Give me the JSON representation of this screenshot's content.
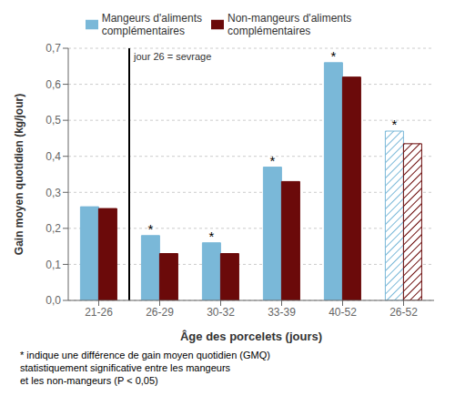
{
  "chart_data": {
    "type": "bar",
    "categories": [
      "21-26",
      "26-29",
      "30-32",
      "33-39",
      "40-52",
      "26-52"
    ],
    "series": [
      {
        "name": "Mangeurs d'aliments\ncomplémentaires",
        "color": "#7ab8d8",
        "values": [
          0.26,
          0.18,
          0.16,
          0.37,
          0.66,
          0.47
        ]
      },
      {
        "name": "Non-mangeurs d'aliments\ncomplémentaires",
        "color": "#6b0a0a",
        "values": [
          0.255,
          0.13,
          0.13,
          0.33,
          0.62,
          0.435
        ]
      }
    ],
    "xlabel": "Âge des porcelets (jours)",
    "ylabel": "Gain moyen quotidien (kg/jour)",
    "ylim": [
      0,
      0.7
    ],
    "yticks": [
      {
        "value": 0.0,
        "label": "0,0"
      },
      {
        "value": 0.1,
        "label": "0,1"
      },
      {
        "value": 0.2,
        "label": "0,2"
      },
      {
        "value": 0.3,
        "label": "0,3"
      },
      {
        "value": 0.4,
        "label": "0,4"
      },
      {
        "value": 0.5,
        "label": "0,5"
      },
      {
        "value": 0.6,
        "label": "0,6"
      },
      {
        "value": 0.7,
        "label": "0,7"
      }
    ],
    "grid": true,
    "legend": "top",
    "annotations": [
      {
        "text": "*",
        "series": "Mangeurs d'aliments\ncomplémentaires",
        "category": "26-29"
      },
      {
        "text": "*",
        "series": "Mangeurs d'aliments\ncomplémentaires",
        "category": "30-32"
      },
      {
        "text": "*",
        "series": "Mangeurs d'aliments\ncomplémentaires",
        "category": "33-39"
      },
      {
        "text": "*",
        "series": "Mangeurs d'aliments\ncomplémentaires",
        "category": "40-52"
      },
      {
        "text": "*",
        "series": "Mangeurs d'aliments\ncomplémentaires",
        "category": "26-52"
      }
    ],
    "vline": {
      "label": "jour 26 = sevrage",
      "between": [
        "21-26",
        "26-29"
      ]
    },
    "footnote": "* indique une différence de gain moyen quotidien (GMQ)\nstatistiquement significative entre les mangeurs\net les non-mangeurs (P < 0,05)"
  }
}
